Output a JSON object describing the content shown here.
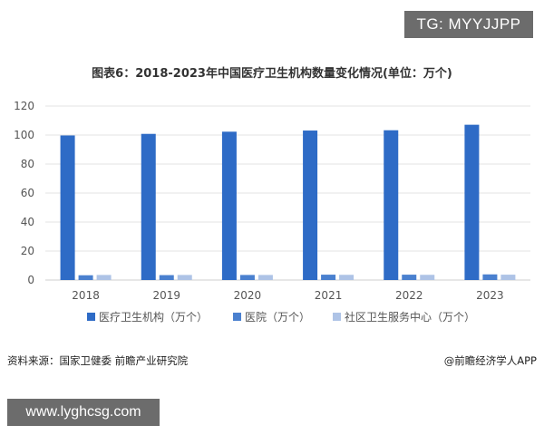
{
  "badges": {
    "top_right": "TG: MYYJJPP",
    "bottom_left": "www.lyghcsg.com"
  },
  "colors": {
    "series_medical_institutions": "#2e6bc6",
    "series_hospitals": "#4a80cf",
    "series_community_centers": "#aec3e6",
    "grid": "#e3e3e3",
    "axis": "#cfcfcf"
  },
  "footer": {
    "source": "资料来源：国家卫健委 前瞻产业研究院",
    "brand": "@前瞻经济学人APP"
  },
  "chart_data": {
    "type": "bar",
    "title": "图表6：2018-2023年中国医疗卫生机构数量变化情况(单位：万个)",
    "categories": [
      "2018",
      "2019",
      "2020",
      "2021",
      "2022",
      "2023"
    ],
    "ylim": [
      0,
      120
    ],
    "yticks": [
      0,
      20,
      40,
      60,
      80,
      100,
      120
    ],
    "grid": true,
    "legend_position": "bottom",
    "series": [
      {
        "name": "医疗卫生机构（万个）",
        "values": [
          99.7,
          100.8,
          102.3,
          103.1,
          103.3,
          107.1
        ]
      },
      {
        "name": "医院（万个）",
        "values": [
          3.3,
          3.4,
          3.5,
          3.7,
          3.7,
          3.9
        ]
      },
      {
        "name": "社区卫生服务中心（万个）",
        "values": [
          3.5,
          3.5,
          3.5,
          3.6,
          3.6,
          3.7
        ]
      }
    ]
  }
}
